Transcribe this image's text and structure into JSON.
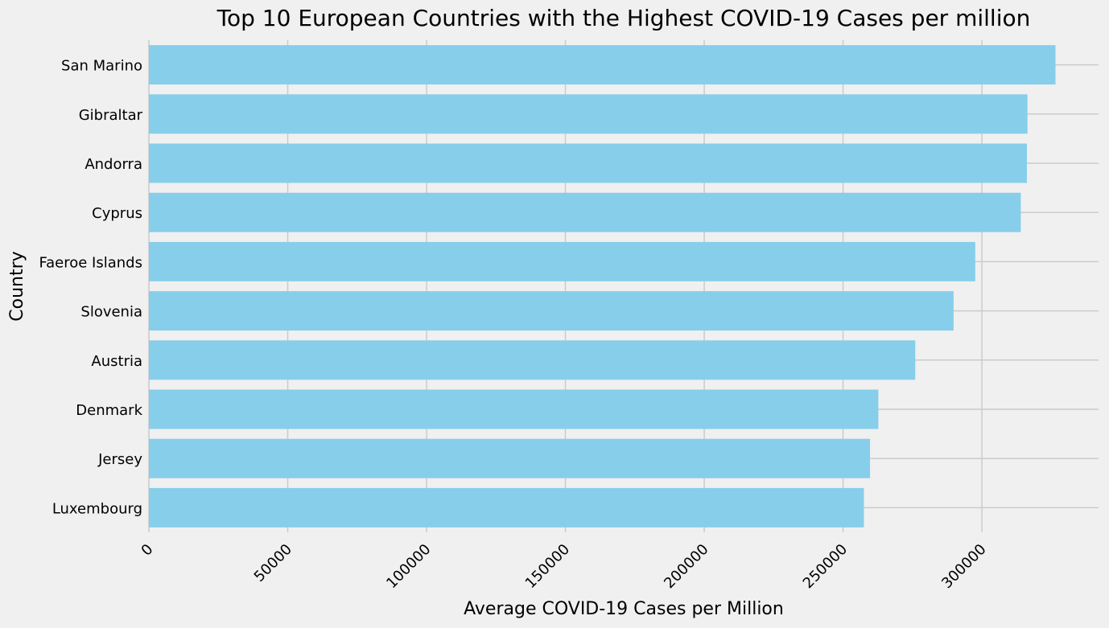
{
  "chart_data": {
    "type": "bar",
    "orientation": "horizontal",
    "title": "Top 10 European Countries with the Highest COVID-19 Cases per million",
    "xlabel": "Average COVID-19 Cases per Million",
    "ylabel": "Country",
    "categories": [
      "San Marino",
      "Gibraltar",
      "Andorra",
      "Cyprus",
      "Faeroe Islands",
      "Slovenia",
      "Austria",
      "Denmark",
      "Jersey",
      "Luxembourg"
    ],
    "values": [
      326500,
      316400,
      316200,
      314000,
      297600,
      289800,
      276000,
      262700,
      259700,
      257500
    ],
    "xlim": [
      0,
      342000
    ],
    "xticks": [
      0,
      50000,
      100000,
      150000,
      200000,
      250000,
      300000
    ],
    "xtick_labels": [
      "0",
      "50000",
      "100000",
      "150000",
      "200000",
      "250000",
      "300000"
    ],
    "grid": true,
    "bar_color": "#87ceeb",
    "background_color": "#f0f0f0",
    "grid_color": "#cbcbcb"
  }
}
